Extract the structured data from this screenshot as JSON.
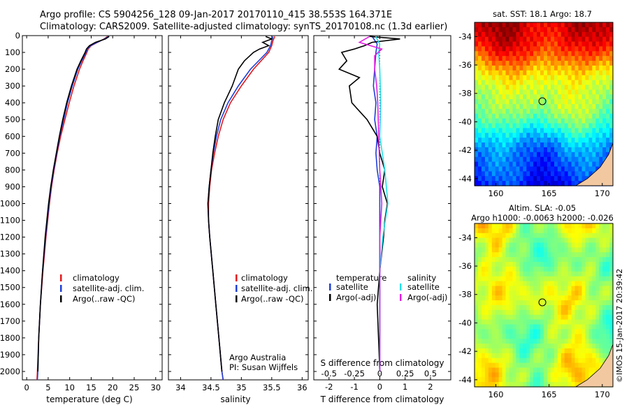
{
  "header": {
    "line1": "Argo profile: CS 5904256_128 09-Jan-2017 20170110_415 38.553S 164.371E",
    "line2": "Climatology: CARS2009. Satellite-adjusted climatology: synTS_20170108.nc (1.3d earlier)"
  },
  "side_label": "©IMOS 15-Jan-2017 20:39:42",
  "credit": {
    "line1": "Argo Australia",
    "line2": "PI: Susan Wijffels"
  },
  "colors": {
    "climatology": "#e41a1c",
    "satellite": "#1f3fd6",
    "argo": "#000000",
    "sal_satellite": "#22e0e8",
    "sal_argo": "#e020e0"
  },
  "chart_data": [
    {
      "id": "temperature",
      "type": "line",
      "xlabel": "temperature (deg C)",
      "ylabel": "",
      "xlim": [
        -1,
        31.5
      ],
      "ylim": [
        2050,
        0
      ],
      "xticks": [
        0,
        5,
        10,
        15,
        20,
        25,
        30
      ],
      "yticks": [
        0,
        100,
        200,
        300,
        400,
        500,
        600,
        700,
        800,
        900,
        1000,
        1100,
        1200,
        1300,
        1400,
        1500,
        1600,
        1700,
        1800,
        1900,
        2000
      ],
      "legend": [
        "climatology",
        "satellite-adj. clim.",
        "Argo(..raw -QC)"
      ],
      "series": [
        {
          "name": "climatology",
          "color": "#e41a1c",
          "depth": [
            5,
            20,
            40,
            60,
            80,
            100,
            150,
            200,
            300,
            400,
            500,
            600,
            700,
            800,
            900,
            1000,
            1200,
            1400,
            1600,
            1800,
            2000,
            2050
          ],
          "values": [
            18.8,
            18,
            16.5,
            15,
            14.3,
            14,
            13.1,
            12.3,
            11,
            9.9,
            8.9,
            7.9,
            7.1,
            6.4,
            5.8,
            5.3,
            4.5,
            3.8,
            3.2,
            2.8,
            2.5,
            2.4
          ]
        },
        {
          "name": "satellite-adj. clim.",
          "color": "#1f3fd6",
          "depth": [
            5,
            20,
            40,
            60,
            80,
            100,
            150,
            200,
            300,
            400,
            500,
            600,
            700,
            800,
            900,
            1000,
            1200,
            1400,
            1600,
            1800,
            2000,
            2050
          ],
          "values": [
            19,
            18.1,
            16.4,
            14.9,
            14.1,
            13.8,
            12.8,
            11.9,
            10.6,
            9.5,
            8.6,
            7.7,
            7,
            6.3,
            5.7,
            5.2,
            4.4,
            3.7,
            3.2,
            2.8,
            2.6,
            2.5
          ]
        },
        {
          "name": "Argo(..raw -QC)",
          "color": "#000000",
          "depth": [
            5,
            20,
            40,
            60,
            80,
            100,
            150,
            200,
            300,
            400,
            500,
            600,
            700,
            800,
            900,
            1000,
            1200,
            1400,
            1600,
            1800,
            2000
          ],
          "values": [
            19.2,
            18.3,
            16,
            14.6,
            13.9,
            13.6,
            12.6,
            11.7,
            10.4,
            9.3,
            8.4,
            7.6,
            6.9,
            6.2,
            5.6,
            5.1,
            4.3,
            3.7,
            3.2,
            2.8,
            2.6
          ]
        }
      ]
    },
    {
      "id": "salinity",
      "type": "line",
      "xlabel": "salinity",
      "ylabel": "",
      "xlim": [
        33.8,
        36.1
      ],
      "ylim": [
        2050,
        0
      ],
      "xticks": [
        34,
        34.5,
        35,
        35.5,
        36
      ],
      "legend": [
        "climatology",
        "satellite-adj. clim.",
        "Argo(..raw -QC)"
      ],
      "series": [
        {
          "name": "climatology",
          "color": "#e41a1c",
          "depth": [
            5,
            30,
            60,
            100,
            200,
            300,
            400,
            500,
            600,
            700,
            800,
            900,
            1000,
            1100,
            1200,
            1400,
            1600,
            1800,
            2000,
            2050
          ],
          "values": [
            35.55,
            35.52,
            35.5,
            35.45,
            35.2,
            35.0,
            34.82,
            34.7,
            34.62,
            34.56,
            34.51,
            34.48,
            34.46,
            34.46,
            34.48,
            34.53,
            34.58,
            34.63,
            34.68,
            34.7
          ]
        },
        {
          "name": "satellite-adj. clim.",
          "color": "#1f3fd6",
          "depth": [
            5,
            30,
            60,
            100,
            200,
            300,
            400,
            500,
            600,
            700,
            800,
            900,
            1000,
            1100,
            1200,
            1400,
            1600,
            1800,
            2000,
            2050
          ],
          "values": [
            35.52,
            35.5,
            35.48,
            35.42,
            35.15,
            34.95,
            34.78,
            34.66,
            34.59,
            34.54,
            34.5,
            34.47,
            34.45,
            34.46,
            34.48,
            34.53,
            34.58,
            34.63,
            34.68,
            34.7
          ]
        },
        {
          "name": "Argo(..raw -QC)",
          "color": "#000000",
          "depth": [
            5,
            20,
            40,
            60,
            80,
            100,
            150,
            200,
            300,
            400,
            500,
            600,
            700,
            800,
            900,
            1000,
            1100,
            1200,
            1400,
            1600,
            1800,
            2000
          ],
          "values": [
            35.4,
            35.5,
            35.35,
            35.45,
            35.3,
            35.2,
            35.05,
            34.95,
            34.85,
            34.72,
            34.62,
            34.57,
            34.53,
            34.5,
            34.47,
            34.45,
            34.46,
            34.48,
            34.53,
            34.58,
            34.63,
            34.68
          ]
        }
      ]
    },
    {
      "id": "difference",
      "type": "line",
      "xlabel": "T difference from climatology",
      "xlabel_top": "S difference from climatology",
      "xlim": [
        -2.6,
        2.8
      ],
      "ylim": [
        2050,
        0
      ],
      "xticks": [
        -2,
        -1,
        0,
        1,
        2
      ],
      "xticks_s": [
        "-0.5",
        "-0.25",
        "0",
        "0.25",
        "0.5"
      ],
      "legend_temperature": {
        "title": "temperature",
        "items": [
          "satellite",
          "Argo(-adj)"
        ]
      },
      "legend_salinity": {
        "title": "salinity",
        "items": [
          "satellite",
          "Argo(-adj)"
        ]
      },
      "series": [
        {
          "name": "temperature satellite",
          "color": "#1f3fd6",
          "depth": [
            5,
            50,
            100,
            200,
            300,
            400,
            500,
            600,
            700,
            800,
            900,
            1000,
            1200,
            1500,
            2000
          ],
          "values": [
            -0.3,
            -0.1,
            -0.15,
            -0.2,
            -0.25,
            -0.15,
            -0.2,
            -0.1,
            -0.15,
            -0.1,
            0.0,
            0.0,
            0.0,
            0.0,
            0.0
          ]
        },
        {
          "name": "temperature Argo(-adj)",
          "color": "#000000",
          "depth": [
            5,
            20,
            40,
            60,
            80,
            100,
            150,
            200,
            250,
            300,
            400,
            500,
            550,
            600,
            700,
            800,
            900,
            1000,
            1100,
            1200,
            1400,
            1600,
            1800,
            2000
          ],
          "values": [
            -0.4,
            0.8,
            -0.3,
            -0.6,
            -1.0,
            -1.5,
            -1.3,
            -1.6,
            -0.8,
            -1.2,
            -1.1,
            -0.5,
            -0.3,
            -0.1,
            0.0,
            0.2,
            0.1,
            0.3,
            0.2,
            0.15,
            0.0,
            -0.1,
            -0.05,
            0.0
          ]
        },
        {
          "name": "salinity satellite",
          "color": "#22e0e8",
          "depth": [
            5,
            50,
            100,
            200,
            400,
            600,
            800,
            1000,
            1200,
            1400,
            1600,
            1800,
            2000
          ],
          "values": [
            -0.04,
            0.0,
            -0.01,
            0.0,
            0.01,
            0.0,
            0.05,
            0.08,
            0.03,
            0.0,
            0.0,
            0.0,
            0.0
          ]
        },
        {
          "name": "salinity Argo(-adj)",
          "color": "#e020e0",
          "depth": [
            5,
            40,
            80,
            120,
            200,
            300,
            400,
            600,
            800,
            1000,
            1200,
            1500,
            2000
          ],
          "values": [
            -0.1,
            -0.2,
            0.02,
            -0.05,
            -0.05,
            -0.03,
            -0.02,
            -0.01,
            0.0,
            0.02,
            0.0,
            0.0,
            0.0
          ]
        }
      ]
    },
    {
      "id": "sst_map",
      "type": "heatmap",
      "title": "sat. SST: 18.1 Argo: 18.7",
      "xlim": [
        158,
        171
      ],
      "ylim": [
        -44.5,
        -33
      ],
      "xticks": [
        160,
        165,
        170
      ],
      "yticks": [
        -34,
        -36,
        -38,
        -40,
        -42,
        -44
      ],
      "marker": [
        164.371,
        -38.553
      ],
      "colormap": "jet"
    },
    {
      "id": "sla_map",
      "type": "heatmap",
      "title": "Altim. SLA: -0.05",
      "subtitle": "Argo h1000: -0.0063 h2000: -0.026",
      "xlim": [
        158,
        171
      ],
      "ylim": [
        -44.5,
        -33
      ],
      "xticks": [
        160,
        165,
        170
      ],
      "yticks": [
        -34,
        -36,
        -38,
        -40,
        -42,
        -44
      ],
      "marker": [
        164.371,
        -38.553
      ],
      "colormap": "jet"
    }
  ]
}
